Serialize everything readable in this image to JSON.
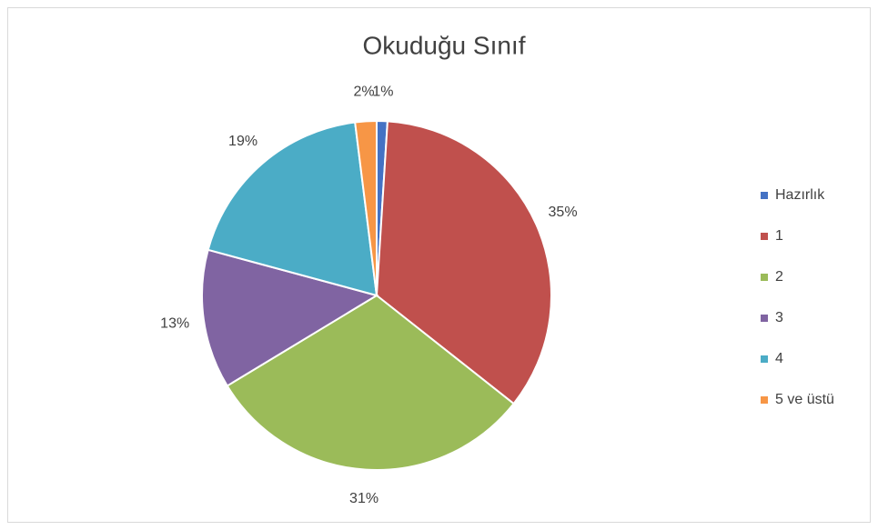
{
  "chart_data": {
    "type": "pie",
    "title": "Okuduğu Sınıf",
    "categories": [
      "Hazırlık",
      "1",
      "2",
      "3",
      "4",
      "5 ve üstü"
    ],
    "values": [
      1,
      35,
      31,
      13,
      19,
      2
    ],
    "value_labels": [
      "1%",
      "35%",
      "31%",
      "13%",
      "19%",
      "2%"
    ],
    "colors": [
      "#4472c4",
      "#c0504d",
      "#9bbb59",
      "#8064a2",
      "#4bacc6",
      "#f79646"
    ],
    "legend": "right"
  }
}
